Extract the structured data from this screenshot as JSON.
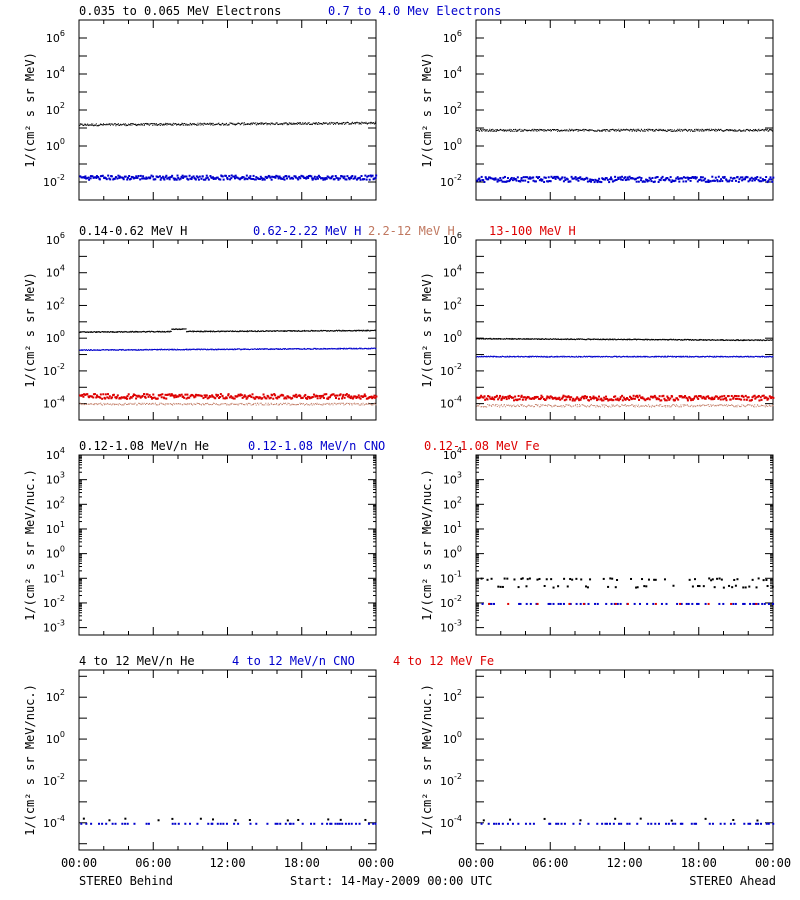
{
  "colors": {
    "black": "#000000",
    "blue": "#0000cc",
    "salmon": "#c07860",
    "red": "#dd0000"
  },
  "ylabel_plain": "1/(cm² s sr MeV)",
  "ylabel_nuc": "1/(cm² s sr MeV/nuc.)",
  "footer": {
    "left": "STEREO Behind",
    "center": "Start: 14-May-2009 00:00 UTC",
    "right": "STEREO Ahead"
  },
  "xticks": [
    "00:00",
    "06:00",
    "12:00",
    "18:00",
    "00:00"
  ],
  "chart_data": [
    {
      "type": "scatter",
      "name": "electrons-behind",
      "log": true,
      "ylim_exp": [
        -3,
        7
      ],
      "yticks": [
        -2,
        0,
        2,
        4,
        6
      ],
      "ylabel": "1/(cm² s sr MeV)",
      "legend": [
        {
          "text": "0.035 to 0.065 MeV Electrons",
          "color": "#000000"
        },
        {
          "text": "0.7 to 4.0 Mev Electrons",
          "color": "#0000cc"
        }
      ],
      "series": [
        {
          "name": "0.035 to 0.065 MeV Electrons",
          "color": "#000000",
          "base": 1.2,
          "slope": 0.1,
          "noise": 0.06,
          "n": 500,
          "size": 1
        },
        {
          "name": "0.7 to 4.0 Mev Electrons",
          "color": "#0000cc",
          "base": -1.7,
          "slope": 0,
          "noise": 0.12,
          "n": 300,
          "size": 2
        }
      ]
    },
    {
      "type": "scatter",
      "name": "electrons-ahead",
      "log": true,
      "ylim_exp": [
        -3,
        7
      ],
      "yticks": [
        -2,
        0,
        2,
        4,
        6
      ],
      "ylabel": "1/(cm² s sr MeV)",
      "legend": [],
      "series": [
        {
          "name": "0.035 to 0.065 MeV Electrons",
          "color": "#000000",
          "base": 0.9,
          "slope": 0,
          "noise": 0.06,
          "n": 500,
          "size": 1
        },
        {
          "name": "0.7 to 4.0 Mev Electrons",
          "color": "#0000cc",
          "base": -1.8,
          "slope": 0,
          "noise": 0.15,
          "n": 300,
          "size": 2
        }
      ]
    },
    {
      "type": "scatter",
      "name": "protons-behind",
      "log": true,
      "ylim_exp": [
        -5,
        6
      ],
      "yticks": [
        -4,
        -2,
        0,
        2,
        4,
        6
      ],
      "ylabel": "1/(cm² s sr MeV)",
      "legend": [
        {
          "text": "0.14-0.62 MeV H",
          "color": "#000000"
        },
        {
          "text": "0.62-2.22 MeV H",
          "color": "#0000cc"
        },
        {
          "text": "2.2-12 MeV H",
          "color": "#c07860"
        },
        {
          "text": "13-100 MeV H",
          "color": "#dd0000"
        }
      ],
      "series": [
        {
          "name": "0.14-0.62 MeV H",
          "color": "#000000",
          "base": 0.4,
          "slope": 0.1,
          "noise": 0.03,
          "n": 600,
          "size": 1,
          "bump": [
            0.31,
            0.27
          ]
        },
        {
          "name": "0.62-2.22 MeV H",
          "color": "#0000cc",
          "base": -0.7,
          "slope": 0.1,
          "noise": 0.03,
          "n": 600,
          "size": 1
        },
        {
          "name": "2.2-12 MeV H",
          "color": "#c07860",
          "base": -4.0,
          "slope": 0,
          "noise": 0.06,
          "n": 300,
          "size": 1
        },
        {
          "name": "13-100 MeV H",
          "color": "#dd0000",
          "base": -3.5,
          "slope": 0,
          "noise": 0.15,
          "n": 300,
          "size": 2
        }
      ]
    },
    {
      "type": "scatter",
      "name": "protons-ahead",
      "log": true,
      "ylim_exp": [
        -5,
        6
      ],
      "yticks": [
        -4,
        -2,
        0,
        2,
        4,
        6
      ],
      "ylabel": "1/(cm² s sr MeV)",
      "legend": [],
      "series": [
        {
          "name": "0.14-0.62 MeV H",
          "color": "#000000",
          "base": 0.0,
          "slope": -0.1,
          "noise": 0.03,
          "n": 600,
          "size": 1
        },
        {
          "name": "0.62-2.22 MeV H",
          "color": "#0000cc",
          "base": -1.1,
          "slope": 0,
          "noise": 0.03,
          "n": 600,
          "size": 1
        },
        {
          "name": "2.2-12 MeV H",
          "color": "#c07860",
          "base": -4.1,
          "slope": 0,
          "noise": 0.08,
          "n": 300,
          "size": 1
        },
        {
          "name": "13-100 MeV H",
          "color": "#dd0000",
          "base": -3.6,
          "slope": 0,
          "noise": 0.15,
          "n": 300,
          "size": 2
        }
      ]
    },
    {
      "type": "scatter",
      "name": "heavy-low-behind",
      "log": true,
      "ylim_exp": [
        -3.3,
        4
      ],
      "yticks": [
        -3,
        -2,
        -1,
        0,
        1,
        2,
        3,
        4
      ],
      "ylabel": "1/(cm² s sr MeV/nuc.)",
      "legend": [
        {
          "text": "0.12-1.08 MeV/n He",
          "color": "#000000"
        },
        {
          "text": "0.12-1.08 MeV/n CNO",
          "color": "#0000cc"
        },
        {
          "text": "0.12-1.08 MeV Fe",
          "color": "#dd0000"
        }
      ],
      "series": []
    },
    {
      "type": "scatter",
      "name": "heavy-low-ahead",
      "log": true,
      "ylim_exp": [
        -3.3,
        4
      ],
      "yticks": [
        -3,
        -2,
        -1,
        0,
        1,
        2,
        3,
        4
      ],
      "ylabel": "1/(cm² s sr MeV/nuc.)",
      "legend": [],
      "series": [
        {
          "name": "0.12-1.08 MeV/n He",
          "color": "#000000",
          "base": -1.25,
          "slope": 0,
          "noise": 0,
          "n": 130,
          "size": 2,
          "gappy": 0.35,
          "levels": [
            -1.0,
            -1.3
          ]
        },
        {
          "name": "0.12-1.08 MeV/n CNO",
          "color": "#0000cc",
          "base": -2.0,
          "slope": 0,
          "noise": 0,
          "n": 90,
          "size": 2,
          "gappy": 0.4
        },
        {
          "name": "0.12-1.08 MeV Fe",
          "color": "#dd0000",
          "base": -2.0,
          "slope": 0,
          "noise": 0,
          "n": 12,
          "size": 2,
          "gappy": 0
        }
      ]
    },
    {
      "type": "scatter",
      "name": "heavy-high-behind",
      "log": true,
      "ylim_exp": [
        -5.3,
        3.3
      ],
      "yticks": [
        -4,
        -2,
        0,
        2
      ],
      "ylabel": "1/(cm² s sr MeV/nuc.)",
      "legend": [
        {
          "text": "4 to 12 MeV/n He",
          "color": "#000000"
        },
        {
          "text": "4 to 12 MeV/n CNO",
          "color": "#0000cc"
        },
        {
          "text": "4 to 12 MeV Fe",
          "color": "#dd0000"
        }
      ],
      "series": [
        {
          "name": "4 to 12 MeV/n CNO",
          "color": "#0000cc",
          "base": -4.0,
          "slope": 0,
          "noise": 0,
          "n": 110,
          "size": 2,
          "gappy": 0.45
        },
        {
          "name": "4 to 12 MeV/n He",
          "color": "#000000",
          "base": -3.8,
          "slope": 0,
          "noise": 0.05,
          "n": 14,
          "size": 2,
          "gappy": 0
        }
      ]
    },
    {
      "type": "scatter",
      "name": "heavy-high-ahead",
      "log": true,
      "ylim_exp": [
        -5.3,
        3.3
      ],
      "yticks": [
        -4,
        -2,
        0,
        2
      ],
      "ylabel": "1/(cm² s sr MeV/nuc.)",
      "legend": [],
      "series": [
        {
          "name": "4 to 12 MeV/n CNO",
          "color": "#0000cc",
          "base": -4.0,
          "slope": 0,
          "noise": 0,
          "n": 110,
          "size": 2,
          "gappy": 0.45
        },
        {
          "name": "4 to 12 MeV/n He",
          "color": "#000000",
          "base": -3.8,
          "slope": 0,
          "noise": 0.05,
          "n": 10,
          "size": 2,
          "gappy": 0
        }
      ]
    }
  ]
}
